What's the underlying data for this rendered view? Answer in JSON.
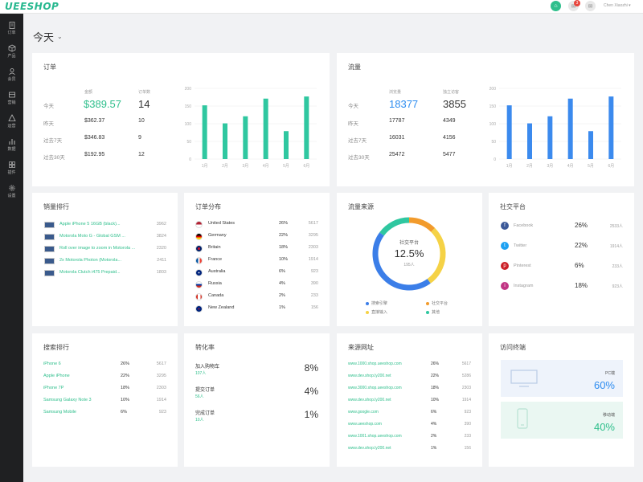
{
  "topbar": {
    "logo": "UEESHOP",
    "badge": "3",
    "user": "Chen Xiaozhi"
  },
  "sidebar": [
    {
      "label": "订单",
      "icon": "clipboard-icon"
    },
    {
      "label": "产品",
      "icon": "cube-icon"
    },
    {
      "label": "会员",
      "icon": "user-icon"
    },
    {
      "label": "营销",
      "icon": "tag-icon"
    },
    {
      "label": "运营",
      "icon": "chart-icon"
    },
    {
      "label": "数据",
      "icon": "database-icon"
    },
    {
      "label": "插件",
      "icon": "puzzle-icon"
    },
    {
      "label": "设置",
      "icon": "gear-icon"
    }
  ],
  "page": {
    "title": "今天"
  },
  "orders": {
    "title": "订单",
    "col1": "金额",
    "col2": "订单数",
    "rows": [
      {
        "label": "今天",
        "amount": "$389.57",
        "count": "14"
      },
      {
        "label": "昨天",
        "amount": "$362.37",
        "count": "10"
      },
      {
        "label": "过去7天",
        "amount": "$346.83",
        "count": "9"
      },
      {
        "label": "过去30天",
        "amount": "$192.95",
        "count": "12"
      }
    ]
  },
  "traffic": {
    "title": "流量",
    "col1": "浏览量",
    "col2": "独立访客",
    "rows": [
      {
        "label": "今天",
        "views": "18377",
        "visitors": "3855"
      },
      {
        "label": "昨天",
        "views": "17787",
        "visitors": "4349"
      },
      {
        "label": "过去7天",
        "views": "16031",
        "visitors": "4156"
      },
      {
        "label": "过去30天",
        "views": "25472",
        "visitors": "5477"
      }
    ]
  },
  "chart_data": [
    {
      "type": "bar",
      "categories": [
        "1月",
        "2月",
        "3月",
        "4月",
        "5月",
        "6月"
      ],
      "values": [
        152,
        101,
        121,
        171,
        79,
        177
      ],
      "ylim": [
        0,
        200
      ],
      "yticks": [
        "0",
        "50",
        "100",
        "150",
        "200"
      ],
      "color": "#2fc7a0"
    },
    {
      "type": "bar",
      "categories": [
        "1月",
        "2月",
        "3月",
        "4月",
        "5月",
        "6月"
      ],
      "values": [
        152,
        101,
        121,
        171,
        79,
        177
      ],
      "ylim": [
        0,
        200
      ],
      "yticks": [
        "0",
        "50",
        "100",
        "150",
        "200"
      ],
      "color": "#3b8aee"
    },
    {
      "type": "pie",
      "title": "流量来源",
      "center_label": "社交平台",
      "center_value": "12.5%",
      "center_sub": "195人",
      "legend": [
        {
          "name": "搜索引擎",
          "color": "#3b7ee8"
        },
        {
          "name": "社交平台",
          "color": "#f29b2c"
        },
        {
          "name": "直接输入",
          "color": "#f5d246"
        },
        {
          "name": "其他",
          "color": "#2fc7a0"
        }
      ],
      "values": [
        45,
        12.5,
        27.5,
        15
      ]
    }
  ],
  "sales_rank": {
    "title": "销量排行",
    "items": [
      {
        "name": "Apple iPhone 5 16GB (black)...",
        "value": "3962"
      },
      {
        "name": "Motorola Moto G - Global GSM ...",
        "value": "3824"
      },
      {
        "name": "Roll over image to zoom in Motorola ...",
        "value": "2320"
      },
      {
        "name": "2x Motorola Photon (Motorola...",
        "value": "2411"
      },
      {
        "name": "Motorola Clutch i475 Prepaid...",
        "value": "1803"
      }
    ]
  },
  "order_dist": {
    "title": "订单分布",
    "items": [
      {
        "name": "United States",
        "pct": "26%",
        "val": "5617"
      },
      {
        "name": "Germany",
        "pct": "22%",
        "val": "3295"
      },
      {
        "name": "Britain",
        "pct": "18%",
        "val": "2303"
      },
      {
        "name": "France",
        "pct": "10%",
        "val": "1914"
      },
      {
        "name": "Australia",
        "pct": "6%",
        "val": "923"
      },
      {
        "name": "Russia",
        "pct": "4%",
        "val": "390"
      },
      {
        "name": "Canada",
        "pct": "2%",
        "val": "233"
      },
      {
        "name": "New Zealand",
        "pct": "1%",
        "val": "156"
      }
    ]
  },
  "social": {
    "title": "社交平台",
    "items": [
      {
        "name": "Facebook",
        "pct": "26%",
        "val": "2533人",
        "color": "#3b5998",
        "glyph": "f"
      },
      {
        "name": "Twitter",
        "pct": "22%",
        "val": "1914人",
        "color": "#1da1f2",
        "glyph": "t"
      },
      {
        "name": "Pinterest",
        "pct": "6%",
        "val": "233人",
        "color": "#cb2027",
        "glyph": "p"
      },
      {
        "name": "Instagram",
        "pct": "18%",
        "val": "923人",
        "color": "#c13584",
        "glyph": "i"
      }
    ]
  },
  "search_rank": {
    "title": "搜索排行",
    "items": [
      {
        "name": "iPhone 6",
        "pct": "26%",
        "val": "5617"
      },
      {
        "name": "Apple iPhone",
        "pct": "22%",
        "val": "3295"
      },
      {
        "name": "iPhone 7P",
        "pct": "18%",
        "val": "2303"
      },
      {
        "name": "Samsung Galaxy Note 3",
        "pct": "10%",
        "val": "1914"
      },
      {
        "name": "Samsung Mobile",
        "pct": "6%",
        "val": "923"
      }
    ]
  },
  "conversion": {
    "title": "转化率",
    "items": [
      {
        "name": "加入购物车",
        "sub": "107人",
        "pct": "8%"
      },
      {
        "name": "提交订单",
        "sub": "56人",
        "pct": "4%"
      },
      {
        "name": "完成订单",
        "sub": "10人",
        "pct": "1%"
      }
    ]
  },
  "referrers": {
    "title": "来源网址",
    "items": [
      {
        "name": "www.1000.shop.ueeshop.com",
        "pct": "26%",
        "val": "5617"
      },
      {
        "name": "www.dev.shop.ly200.net",
        "pct": "22%",
        "val": "5286"
      },
      {
        "name": "www.3000.shop.ueeshop.com",
        "pct": "18%",
        "val": "2303"
      },
      {
        "name": "www.dev.shop.ly200.net",
        "pct": "10%",
        "val": "1914"
      },
      {
        "name": "www.google.com",
        "pct": "6%",
        "val": "923"
      },
      {
        "name": "www.ueeshop.com",
        "pct": "4%",
        "val": "390"
      },
      {
        "name": "www.1001.shop.ueeshop.com",
        "pct": "2%",
        "val": "233"
      },
      {
        "name": "www.dev.shop.ly200.net",
        "pct": "1%",
        "val": "156"
      }
    ]
  },
  "devices": {
    "title": "访问终端",
    "pc_label": "PC端",
    "pc_value": "60%",
    "mobile_label": "移动端",
    "mobile_value": "40%"
  }
}
